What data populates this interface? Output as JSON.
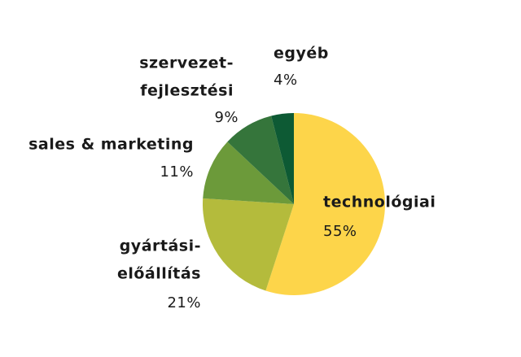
{
  "chart_data": {
    "type": "pie",
    "categories": [
      [
        "technológiai"
      ],
      [
        "gyártási-",
        "előállítás"
      ],
      [
        "sales & marketing"
      ],
      [
        "szervezet-",
        "fejlesztési"
      ],
      [
        "egyéb"
      ]
    ],
    "values": [
      55,
      21,
      11,
      9,
      4
    ],
    "value_labels": [
      "55%",
      "21%",
      "11%",
      "9%",
      "4%"
    ],
    "colors": [
      "#fdd54a",
      "#b4bb3c",
      "#6c9a3a",
      "#35753b",
      "#0d5a34"
    ]
  }
}
